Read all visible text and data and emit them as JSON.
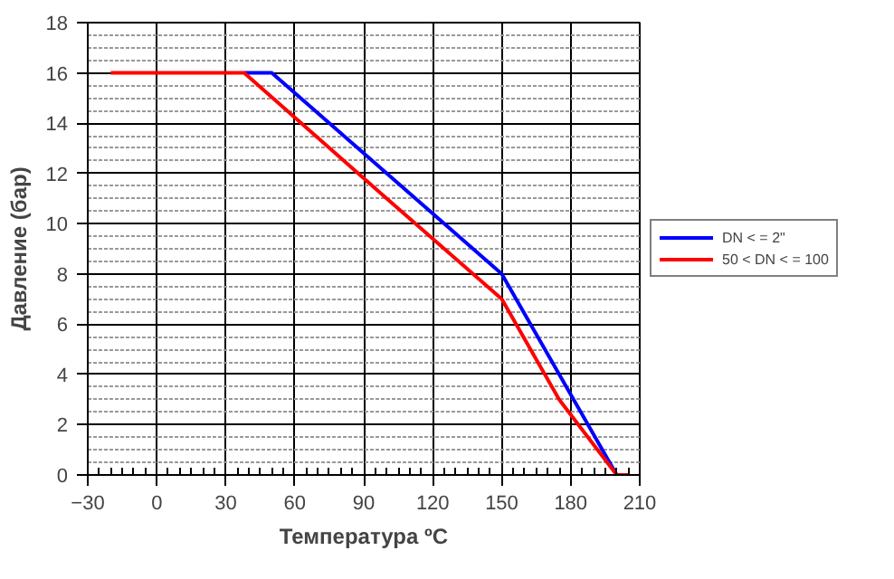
{
  "chart_data": {
    "type": "line",
    "xlabel": "Температура ºC",
    "ylabel": "Давление (бар)",
    "xlim": [
      -30,
      210
    ],
    "xticks": [
      -30,
      0,
      30,
      60,
      90,
      120,
      150,
      180,
      210
    ],
    "ylim": [
      0,
      18
    ],
    "yticks": [
      0,
      2,
      4,
      6,
      8,
      10,
      12,
      14,
      16,
      18
    ],
    "grid": true,
    "legend": "right",
    "line_style": "solid",
    "marker": "none",
    "series": [
      {
        "name": "DN < = 2\"",
        "color": "#0000ff",
        "x": [
          38,
          50,
          150,
          200
        ],
        "values": [
          16,
          16,
          8,
          0
        ]
      },
      {
        "name": "50 < DN < = 100",
        "color": "#ff0000",
        "x": [
          -20,
          38,
          100,
          150,
          175,
          200,
          205
        ],
        "values": [
          16,
          16,
          11,
          7,
          3,
          0,
          0
        ]
      }
    ]
  }
}
